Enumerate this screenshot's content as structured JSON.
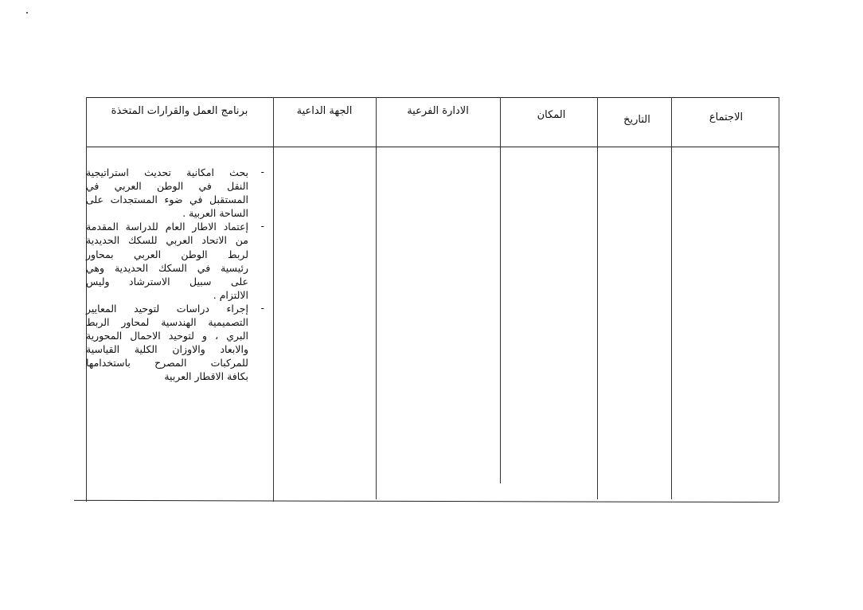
{
  "table": {
    "headers": [
      "الاجتماع",
      "التاريخ",
      "المكان",
      "الادارة الفرعية",
      "الجهة الداعية",
      "برنامج العمل والقرارات المتخذة"
    ],
    "program_items": [
      {
        "dash": "-",
        "lines": [
          "بحث امكانية تحديث استراتيجية",
          "النقل في الوطن العربي في",
          "المستقبل في ضوء المستجدات على",
          "الساحة العربية ."
        ]
      },
      {
        "dash": "-",
        "lines": [
          "إعتماد الاطار العام للدراسة المقدمة",
          "من الاتحاد العربي للسكك الحديدية",
          "لربط الوطن العربي بمحاور",
          "رئيسية في السكك الحديدية وهي",
          "على سبيل الاسترشاد وليس",
          "الالتزام ."
        ]
      },
      {
        "dash": "-",
        "lines": [
          "إجراء دراسات لتوحيد المعايير",
          "التصميمية الهندسية لمحاور الربط",
          "البري ، و لتوحيد الاحمال المحورية",
          "والابعاد والاوزان الكلية القياسية",
          "للمركبات المصرح باستخدامها",
          "بكافة الاقطار العربية"
        ]
      }
    ]
  }
}
